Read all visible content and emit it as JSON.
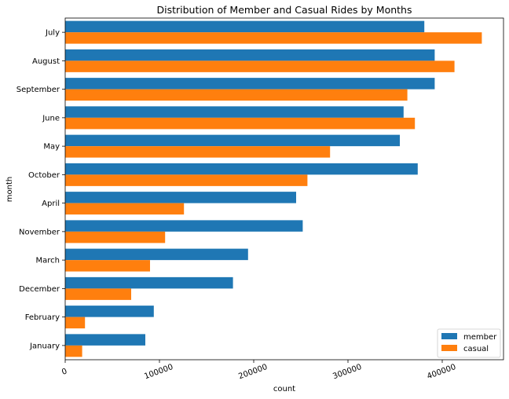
{
  "chart_data": {
    "type": "bar",
    "orientation": "horizontal",
    "title": "Distribution of Member and Casual Rides by Months",
    "xlabel": "count",
    "ylabel": "month",
    "xlim": [
      0,
      465000
    ],
    "x_ticks": [
      0,
      100000,
      200000,
      300000,
      400000
    ],
    "grid": false,
    "legend_position": "bottom-right",
    "categories": [
      "July",
      "August",
      "September",
      "June",
      "May",
      "October",
      "April",
      "November",
      "March",
      "December",
      "February",
      "January"
    ],
    "series": [
      {
        "name": "member",
        "color": "#1f77b4",
        "values": [
          381000,
          392000,
          392000,
          359000,
          355000,
          374000,
          245000,
          252000,
          194000,
          178000,
          94000,
          85000
        ]
      },
      {
        "name": "casual",
        "color": "#ff7f0e",
        "values": [
          442000,
          413000,
          363000,
          371000,
          281000,
          257000,
          126000,
          106000,
          90000,
          70000,
          21000,
          18000
        ]
      }
    ]
  }
}
